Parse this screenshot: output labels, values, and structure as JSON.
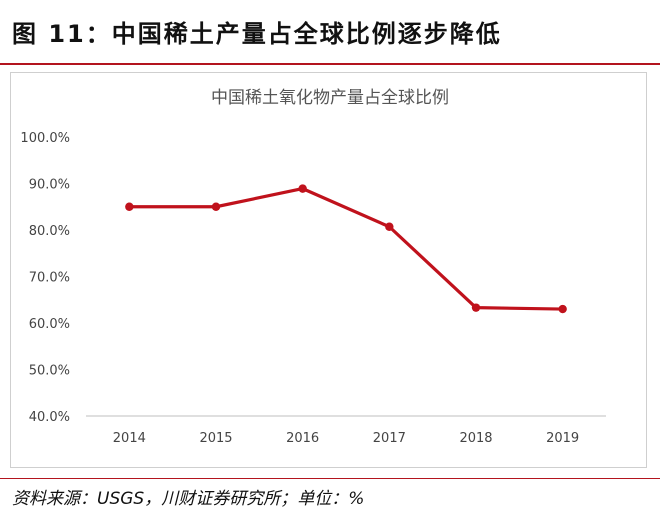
{
  "figure": {
    "title": "图 11：中国稀土产量占全球比例逐步降低",
    "source": "资料来源：USGS，川财证券研究所；单位：%"
  },
  "chart_data": {
    "type": "line",
    "title": "中国稀土氧化物产量占全球比例",
    "x": [
      "2014",
      "2015",
      "2016",
      "2017",
      "2018",
      "2019"
    ],
    "series": [
      {
        "values": [
          85.0,
          85.0,
          88.9,
          80.7,
          63.3,
          63.0
        ],
        "color": "#c0121c"
      }
    ],
    "ylim": [
      40,
      100
    ],
    "yticks": [
      "40.0%",
      "50.0%",
      "60.0%",
      "70.0%",
      "80.0%",
      "90.0%",
      "100.0%"
    ],
    "grid": false,
    "legend": "none"
  }
}
